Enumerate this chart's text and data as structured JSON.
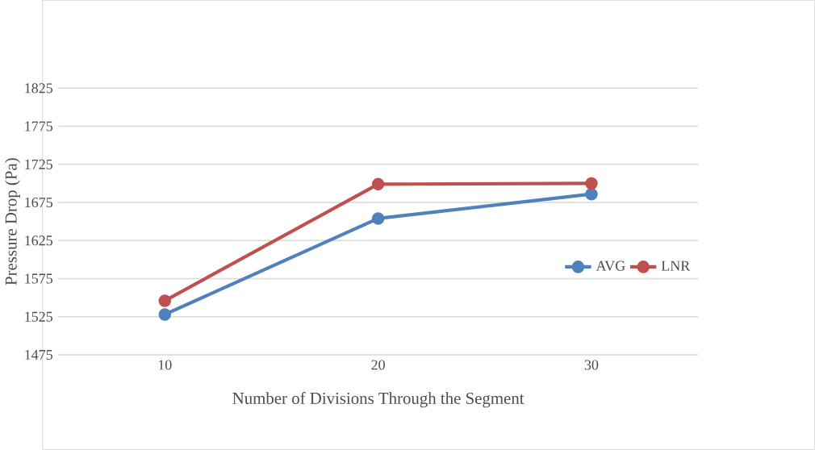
{
  "chart_data": {
    "type": "line",
    "xlabel": "Number of Divisions Through the Segment",
    "ylabel": "Pressure Drop (Pa)",
    "categories": [
      "10",
      "20",
      "30"
    ],
    "series": [
      {
        "name": "AVG",
        "color": "#4f81bd",
        "values": [
          1528,
          1654,
          1686
        ]
      },
      {
        "name": "LNR",
        "color": "#c0504d",
        "values": [
          1546,
          1699,
          1700
        ]
      }
    ],
    "ylim": [
      1475,
      1825
    ],
    "yticks": [
      1475,
      1525,
      1575,
      1625,
      1675,
      1725,
      1775,
      1825
    ],
    "grid": "y",
    "legend": "right",
    "marker": "circle",
    "line_style": "solid"
  }
}
